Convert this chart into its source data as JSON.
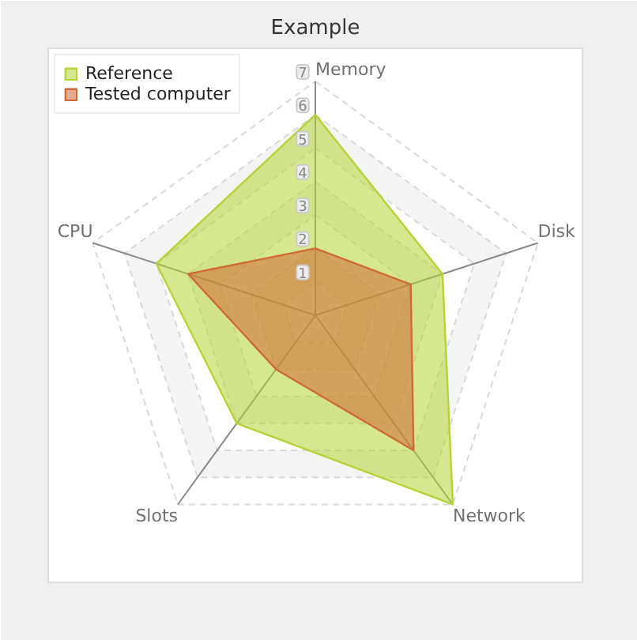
{
  "chart_data": {
    "type": "radar",
    "title": "Example",
    "categories": [
      "Memory",
      "Disk",
      "Network",
      "Slots",
      "CPU"
    ],
    "series": [
      {
        "name": "Reference",
        "color": "#b5d334",
        "values": [
          6,
          4,
          7,
          4,
          5
        ]
      },
      {
        "name": "Tested computer",
        "color": "#d06a34",
        "values": [
          2,
          3,
          5,
          2,
          4
        ]
      }
    ],
    "ylim": [
      0,
      7
    ],
    "yticks": [
      1,
      2,
      3,
      4,
      5,
      6,
      7
    ],
    "grid": true,
    "legend": "top left",
    "line_style": "solid"
  }
}
